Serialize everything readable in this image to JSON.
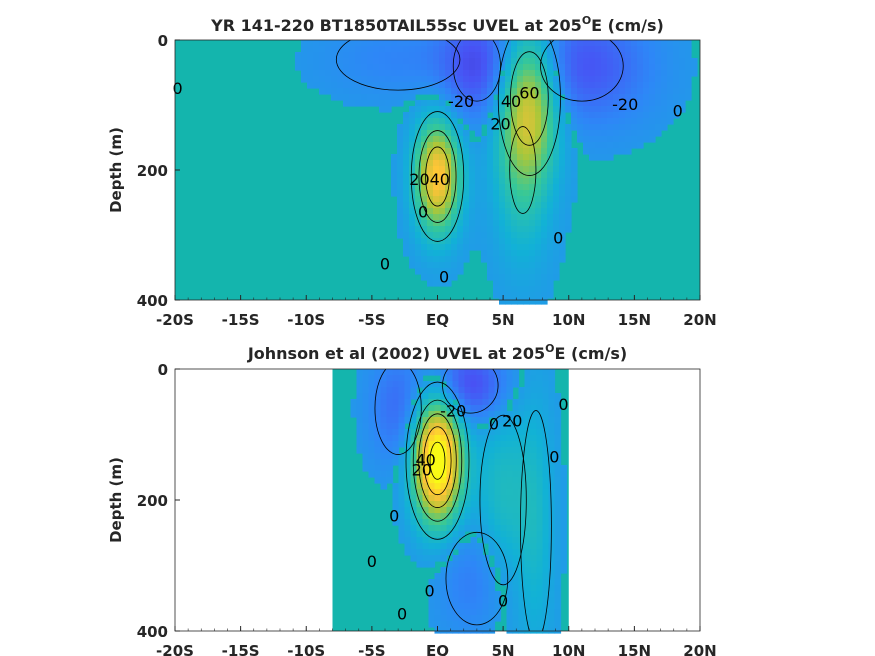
{
  "chart_data": [
    {
      "type": "heatmap",
      "title_main": "YR 141-220 BT1850TAIL55sc UVEL at 205",
      "title_sup": "O",
      "title_end": "E (cm/s)",
      "ylabel": "Depth (m)",
      "xlim": [
        -20,
        20
      ],
      "ylim": [
        400,
        0
      ],
      "x_ticks": [
        "-20S",
        "-15S",
        "-10S",
        "-5S",
        "EQ",
        "5N",
        "10N",
        "15N",
        "20N"
      ],
      "y_ticks": [
        "0",
        "200",
        "400"
      ],
      "colormap": "parula",
      "background_color": "#14b5ad",
      "features": [
        {
          "kind": "jet",
          "lat": 0,
          "depth": 210,
          "peak": 80,
          "sx": 1.2,
          "sy": 60
        },
        {
          "kind": "jet",
          "lat": 7,
          "depth": 90,
          "peak": 60,
          "sx": 1.6,
          "sy": 80
        },
        {
          "kind": "jet",
          "lat": 6.5,
          "depth": 200,
          "peak": 25,
          "sx": 1.5,
          "sy": 100
        },
        {
          "kind": "current",
          "lat": 3,
          "depth": 40,
          "peak": -30,
          "sx": 2.0,
          "sy": 60
        },
        {
          "kind": "current",
          "lat": 11,
          "depth": 40,
          "peak": -30,
          "sx": 3.5,
          "sy": 60
        },
        {
          "kind": "current",
          "lat": -3,
          "depth": 30,
          "peak": -10,
          "sx": 4.0,
          "sy": 40
        }
      ],
      "contour_labels": [
        {
          "text": "0",
          "lat": -19.8,
          "depth": 75
        },
        {
          "text": "-20",
          "lat": 1.8,
          "depth": 95
        },
        {
          "text": "40",
          "lat": 5.6,
          "depth": 95
        },
        {
          "text": "60",
          "lat": 7.0,
          "depth": 82
        },
        {
          "text": "20",
          "lat": 4.8,
          "depth": 130
        },
        {
          "text": "-20",
          "lat": 14.3,
          "depth": 100
        },
        {
          "text": "0",
          "lat": 18.3,
          "depth": 110
        },
        {
          "text": "2040",
          "lat": -0.6,
          "depth": 215
        },
        {
          "text": "0",
          "lat": -1.1,
          "depth": 265
        },
        {
          "text": "0",
          "lat": -4.0,
          "depth": 345
        },
        {
          "text": "0",
          "lat": 0.5,
          "depth": 365
        },
        {
          "text": "0",
          "lat": 9.2,
          "depth": 305
        }
      ]
    },
    {
      "type": "heatmap",
      "title_main": "Johnson et al (2002) UVEL at 205",
      "title_sup": "O",
      "title_end": "E (cm/s)",
      "ylabel": "Depth (m)",
      "xlim": [
        -20,
        20
      ],
      "ylim": [
        400,
        0
      ],
      "x_ticks": [
        "-20S",
        "-15S",
        "-10S",
        "-5S",
        "EQ",
        "5N",
        "10N",
        "15N",
        "20N"
      ],
      "y_ticks": [
        "0",
        "200",
        "400"
      ],
      "colormap": "parula",
      "background_color": "#14b5ad",
      "data_lat_range": [
        -8,
        10
      ],
      "features": [
        {
          "kind": "jet",
          "lat": 0,
          "depth": 140,
          "peak": 110,
          "sx": 1.3,
          "sy": 65
        },
        {
          "kind": "jet",
          "lat": 5,
          "depth": 200,
          "peak": 20,
          "sx": 1.5,
          "sy": 110
        },
        {
          "kind": "jet",
          "lat": 7.5,
          "depth": 240,
          "peak": 15,
          "sx": 1.0,
          "sy": 150
        },
        {
          "kind": "current",
          "lat": 2.5,
          "depth": 25,
          "peak": -35,
          "sx": 2.0,
          "sy": 40
        },
        {
          "kind": "current",
          "lat": -3,
          "depth": 60,
          "peak": -20,
          "sx": 1.5,
          "sy": 60
        },
        {
          "kind": "current",
          "lat": 3,
          "depth": 320,
          "peak": -15,
          "sx": 2.0,
          "sy": 60
        }
      ],
      "contour_labels": [
        {
          "text": "-20",
          "lat": 1.2,
          "depth": 65
        },
        {
          "text": "20",
          "lat": 5.7,
          "depth": 80
        },
        {
          "text": "0",
          "lat": 4.3,
          "depth": 85
        },
        {
          "text": "0",
          "lat": 9.6,
          "depth": 55
        },
        {
          "text": "20",
          "lat": -1.2,
          "depth": 155
        },
        {
          "text": "40",
          "lat": -0.9,
          "depth": 140
        },
        {
          "text": "0",
          "lat": 8.9,
          "depth": 135
        },
        {
          "text": "0",
          "lat": -3.3,
          "depth": 225
        },
        {
          "text": "0",
          "lat": -5.0,
          "depth": 295
        },
        {
          "text": "0",
          "lat": -0.6,
          "depth": 340
        },
        {
          "text": "0",
          "lat": -2.7,
          "depth": 375
        },
        {
          "text": "0",
          "lat": 5.0,
          "depth": 355
        }
      ]
    }
  ]
}
